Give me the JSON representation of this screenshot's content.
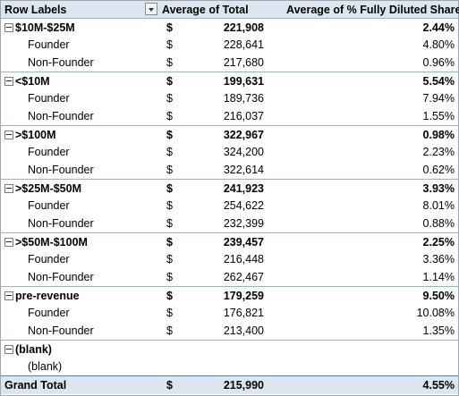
{
  "header": {
    "row_labels": "Row Labels",
    "col_avg_total": "Average of Total",
    "col_avg_pct": "Average of % Fully Diluted Shares",
    "filter_icon": "dropdown-arrow-icon"
  },
  "rows": [
    {
      "type": "group",
      "label": "$10M-$25M",
      "dollar": "$",
      "avg": "221,908",
      "pct": "2.44%"
    },
    {
      "type": "child",
      "label": "Founder",
      "dollar": "$",
      "avg": "228,641",
      "pct": "4.80%"
    },
    {
      "type": "child",
      "label": "Non-Founder",
      "dollar": "$",
      "avg": "217,680",
      "pct": "0.96%"
    },
    {
      "type": "group",
      "label": "<$10M",
      "dollar": "$",
      "avg": "199,631",
      "pct": "5.54%"
    },
    {
      "type": "child",
      "label": "Founder",
      "dollar": "$",
      "avg": "189,736",
      "pct": "7.94%"
    },
    {
      "type": "child",
      "label": "Non-Founder",
      "dollar": "$",
      "avg": "216,037",
      "pct": "1.55%"
    },
    {
      "type": "group",
      "label": ">$100M",
      "dollar": "$",
      "avg": "322,967",
      "pct": "0.98%"
    },
    {
      "type": "child",
      "label": "Founder",
      "dollar": "$",
      "avg": "324,200",
      "pct": "2.23%"
    },
    {
      "type": "child",
      "label": "Non-Founder",
      "dollar": "$",
      "avg": "322,614",
      "pct": "0.62%"
    },
    {
      "type": "group",
      "label": ">$25M-$50M",
      "dollar": "$",
      "avg": "241,923",
      "pct": "3.93%"
    },
    {
      "type": "child",
      "label": "Founder",
      "dollar": "$",
      "avg": "254,622",
      "pct": "8.01%"
    },
    {
      "type": "child",
      "label": "Non-Founder",
      "dollar": "$",
      "avg": "232,399",
      "pct": "0.88%"
    },
    {
      "type": "group",
      "label": ">$50M-$100M",
      "dollar": "$",
      "avg": "239,457",
      "pct": "2.25%"
    },
    {
      "type": "child",
      "label": "Founder",
      "dollar": "$",
      "avg": "216,448",
      "pct": "3.36%"
    },
    {
      "type": "child",
      "label": "Non-Founder",
      "dollar": "$",
      "avg": "262,467",
      "pct": "1.14%"
    },
    {
      "type": "group",
      "label": "pre-revenue",
      "dollar": "$",
      "avg": "179,259",
      "pct": "9.50%"
    },
    {
      "type": "child",
      "label": "Founder",
      "dollar": "$",
      "avg": "176,821",
      "pct": "10.08%"
    },
    {
      "type": "child",
      "label": "Non-Founder",
      "dollar": "$",
      "avg": "213,400",
      "pct": "1.35%"
    },
    {
      "type": "group",
      "label": "(blank)",
      "dollar": "",
      "avg": "",
      "pct": ""
    },
    {
      "type": "child",
      "label": "(blank)",
      "dollar": "",
      "avg": "",
      "pct": ""
    }
  ],
  "grand_total": {
    "label": "Grand Total",
    "dollar": "$",
    "avg": "215,990",
    "pct": "4.55%"
  },
  "colors": {
    "header_bg": "#dce6f1",
    "border": "#95b3d7",
    "accent": "#4f81bd"
  }
}
